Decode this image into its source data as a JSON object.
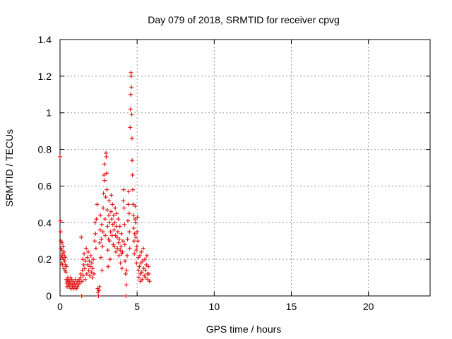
{
  "chart_data": {
    "type": "scatter",
    "title": "Day 079 of 2018, SRMTID for receiver cpvg",
    "xlabel": "GPS time / hours",
    "ylabel": "SRMTID / TECUs",
    "xlim": [
      0,
      24
    ],
    "ylim": [
      0,
      1.4
    ],
    "xticks": [
      0,
      5,
      10,
      15,
      20
    ],
    "yticks": [
      0,
      0.2,
      0.4,
      0.6,
      0.8,
      1,
      1.2,
      1.4
    ],
    "xtick_labels": [
      "0",
      "5",
      "10",
      "15",
      "20"
    ],
    "ytick_labels": [
      "0",
      "0.2",
      "0.4",
      "0.6",
      "0.8",
      "1",
      "1.2",
      "1.4"
    ],
    "grid": true,
    "marker": "+",
    "color": "#e31a1c",
    "series": [
      {
        "name": "cpvg",
        "points": [
          [
            0.0,
            0.76
          ],
          [
            0.02,
            0.41
          ],
          [
            0.03,
            0.35
          ],
          [
            0.05,
            0.3
          ],
          [
            0.06,
            0.26
          ],
          [
            0.08,
            0.22
          ],
          [
            0.1,
            0.18
          ],
          [
            0.11,
            0.25
          ],
          [
            0.13,
            0.29
          ],
          [
            0.15,
            0.21
          ],
          [
            0.16,
            0.17
          ],
          [
            0.18,
            0.23
          ],
          [
            0.2,
            0.27
          ],
          [
            0.22,
            0.2
          ],
          [
            0.24,
            0.15
          ],
          [
            0.26,
            0.24
          ],
          [
            0.28,
            0.22
          ],
          [
            0.3,
            0.19
          ],
          [
            0.32,
            0.14
          ],
          [
            0.34,
            0.21
          ],
          [
            0.36,
            0.17
          ],
          [
            0.38,
            0.13
          ],
          [
            0.4,
            0.09
          ],
          [
            0.42,
            0.16
          ],
          [
            0.44,
            0.07
          ],
          [
            0.46,
            0.05
          ],
          [
            0.48,
            0.08
          ],
          [
            0.5,
            0.1
          ],
          [
            0.52,
            0.06
          ],
          [
            0.55,
            0.09
          ],
          [
            0.58,
            0.07
          ],
          [
            0.6,
            0.05
          ],
          [
            0.62,
            0.08
          ],
          [
            0.65,
            0.06
          ],
          [
            0.68,
            0.1
          ],
          [
            0.7,
            0.07
          ],
          [
            0.72,
            0.04
          ],
          [
            0.75,
            0.09
          ],
          [
            0.78,
            0.06
          ],
          [
            0.8,
            0.05
          ],
          [
            0.83,
            0.08
          ],
          [
            0.86,
            0.06
          ],
          [
            0.9,
            0.04
          ],
          [
            0.93,
            0.07
          ],
          [
            0.96,
            0.05
          ],
          [
            1.0,
            0.09
          ],
          [
            1.03,
            0.06
          ],
          [
            1.06,
            0.04
          ],
          [
            1.1,
            0.07
          ],
          [
            1.13,
            0.05
          ],
          [
            1.16,
            0.08
          ],
          [
            1.2,
            0.06
          ],
          [
            1.24,
            0.09
          ],
          [
            1.28,
            0.07
          ],
          [
            1.32,
            0.1
          ],
          [
            1.35,
            0.12
          ],
          [
            1.38,
            0.32
          ],
          [
            1.4,
            0.0
          ],
          [
            1.42,
            0.08
          ],
          [
            1.45,
            0.14
          ],
          [
            1.48,
            0.2
          ],
          [
            1.5,
            0.11
          ],
          [
            1.53,
            0.17
          ],
          [
            1.56,
            0.23
          ],
          [
            1.6,
            0.15
          ],
          [
            1.63,
            0.09
          ],
          [
            1.66,
            0.19
          ],
          [
            1.7,
            0.26
          ],
          [
            1.73,
            0.12
          ],
          [
            1.76,
            0.21
          ],
          [
            1.8,
            0.17
          ],
          [
            1.83,
            0.24
          ],
          [
            1.86,
            0.14
          ],
          [
            1.9,
            0.19
          ],
          [
            1.93,
            0.11
          ],
          [
            1.96,
            0.16
          ],
          [
            2.0,
            0.22
          ],
          [
            2.03,
            0.13
          ],
          [
            2.06,
            0.18
          ],
          [
            2.1,
            0.1
          ],
          [
            2.13,
            0.15
          ],
          [
            2.16,
            0.2
          ],
          [
            2.2,
            0.12
          ],
          [
            2.25,
            0.3
          ],
          [
            2.28,
            0.4
          ],
          [
            2.3,
            0.34
          ],
          [
            2.33,
            0.26
          ],
          [
            2.36,
            0.42
          ],
          [
            2.4,
            0.5
          ],
          [
            2.45,
            0.04
          ],
          [
            2.47,
            0.02
          ],
          [
            2.5,
            0.0
          ],
          [
            2.52,
            0.03
          ],
          [
            2.55,
            0.05
          ],
          [
            2.58,
            0.29
          ],
          [
            2.6,
            0.36
          ],
          [
            2.62,
            0.44
          ],
          [
            2.65,
            0.21
          ],
          [
            2.68,
            0.31
          ],
          [
            2.7,
            0.39
          ],
          [
            2.72,
            0.14
          ],
          [
            2.75,
            0.27
          ],
          [
            2.78,
            0.35
          ],
          [
            2.8,
            0.48
          ],
          [
            2.82,
            0.56
          ],
          [
            2.85,
            0.66
          ],
          [
            2.88,
            0.72
          ],
          [
            2.9,
            0.63
          ],
          [
            2.92,
            0.42
          ],
          [
            2.94,
            0.33
          ],
          [
            2.96,
            0.54
          ],
          [
            2.98,
            0.78
          ],
          [
            3.0,
            0.76
          ],
          [
            3.02,
            0.67
          ],
          [
            3.04,
            0.58
          ],
          [
            3.06,
            0.47
          ],
          [
            3.08,
            0.38
          ],
          [
            3.1,
            0.25
          ],
          [
            3.12,
            0.16
          ],
          [
            3.14,
            0.31
          ],
          [
            3.16,
            0.44
          ],
          [
            3.18,
            0.52
          ],
          [
            3.2,
            0.4
          ],
          [
            3.22,
            0.3
          ],
          [
            3.25,
            0.2
          ],
          [
            3.28,
            0.35
          ],
          [
            3.3,
            0.46
          ],
          [
            3.32,
            0.55
          ],
          [
            3.35,
            0.42
          ],
          [
            3.38,
            0.33
          ],
          [
            3.4,
            0.5
          ],
          [
            3.42,
            0.39
          ],
          [
            3.45,
            0.28
          ],
          [
            3.48,
            0.44
          ],
          [
            3.5,
            0.36
          ],
          [
            3.52,
            0.27
          ],
          [
            3.55,
            0.4
          ],
          [
            3.58,
            0.48
          ],
          [
            3.6,
            0.33
          ],
          [
            3.62,
            0.24
          ],
          [
            3.65,
            0.38
          ],
          [
            3.68,
            0.45
          ],
          [
            3.7,
            0.32
          ],
          [
            3.72,
            0.26
          ],
          [
            3.75,
            0.35
          ],
          [
            3.78,
            0.42
          ],
          [
            3.8,
            0.29
          ],
          [
            3.82,
            0.22
          ],
          [
            3.85,
            0.31
          ],
          [
            3.88,
            0.38
          ],
          [
            3.9,
            0.25
          ],
          [
            3.92,
            0.18
          ],
          [
            3.95,
            0.27
          ],
          [
            3.98,
            0.34
          ],
          [
            4.0,
            0.23
          ],
          [
            4.02,
            0.15
          ],
          [
            4.05,
            0.24
          ],
          [
            4.08,
            0.3
          ],
          [
            4.1,
            0.52
          ],
          [
            4.12,
            0.58
          ],
          [
            4.15,
            0.48
          ],
          [
            4.18,
            0.39
          ],
          [
            4.2,
            0.28
          ],
          [
            4.22,
            0.19
          ],
          [
            4.25,
            0.12
          ],
          [
            4.28,
            0.0
          ],
          [
            4.3,
            0.06
          ],
          [
            4.32,
            0.14
          ],
          [
            4.35,
            0.22
          ],
          [
            4.38,
            0.31
          ],
          [
            4.4,
            0.41
          ],
          [
            4.42,
            0.5
          ],
          [
            4.45,
            0.57
          ],
          [
            4.48,
            0.45
          ],
          [
            4.5,
            0.35
          ],
          [
            4.52,
            0.26
          ],
          [
            4.55,
            0.92
          ],
          [
            4.57,
            1.02
          ],
          [
            4.58,
            1.1
          ],
          [
            4.6,
            1.22
          ],
          [
            4.62,
            1.2
          ],
          [
            4.63,
            1.14
          ],
          [
            4.65,
            0.99
          ],
          [
            4.67,
            0.86
          ],
          [
            4.68,
            0.74
          ],
          [
            4.7,
            0.66
          ],
          [
            4.72,
            0.58
          ],
          [
            4.74,
            0.5
          ],
          [
            4.76,
            0.44
          ],
          [
            4.78,
            0.37
          ],
          [
            4.8,
            0.3
          ],
          [
            4.82,
            0.23
          ],
          [
            4.84,
            0.34
          ],
          [
            4.86,
            0.42
          ],
          [
            4.88,
            0.49
          ],
          [
            4.9,
            0.4
          ],
          [
            4.92,
            0.32
          ],
          [
            4.94,
            0.25
          ],
          [
            4.96,
            0.18
          ],
          [
            4.98,
            0.27
          ],
          [
            5.0,
            0.35
          ],
          [
            5.02,
            0.43
          ],
          [
            5.05,
            0.3
          ],
          [
            5.08,
            0.21
          ],
          [
            5.1,
            0.14
          ],
          [
            5.12,
            0.1
          ],
          [
            5.15,
            0.16
          ],
          [
            5.18,
            0.22
          ],
          [
            5.2,
            0.12
          ],
          [
            5.22,
            0.08
          ],
          [
            5.25,
            0.18
          ],
          [
            5.28,
            0.24
          ],
          [
            5.3,
            0.13
          ],
          [
            5.33,
            0.09
          ],
          [
            5.36,
            0.19
          ],
          [
            5.4,
            0.26
          ],
          [
            5.43,
            0.15
          ],
          [
            5.46,
            0.11
          ],
          [
            5.5,
            0.2
          ],
          [
            5.53,
            0.14
          ],
          [
            5.56,
            0.1
          ],
          [
            5.6,
            0.17
          ],
          [
            5.63,
            0.22
          ],
          [
            5.66,
            0.12
          ],
          [
            5.7,
            0.09
          ],
          [
            5.73,
            0.16
          ],
          [
            5.76,
            0.12
          ],
          [
            5.8,
            0.08
          ]
        ]
      }
    ]
  }
}
